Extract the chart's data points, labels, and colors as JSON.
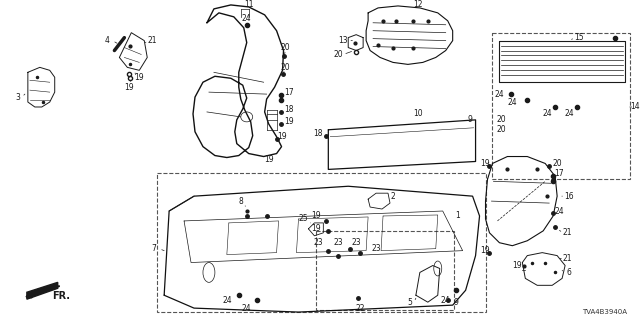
{
  "diagram_code": "TVA4B3940A",
  "fr_label": "FR.",
  "background_color": "#ffffff",
  "fig_width": 6.4,
  "fig_height": 3.2,
  "dpi": 100,
  "label_fontsize": 5.5,
  "diagram_gray": "#1a1a1a"
}
